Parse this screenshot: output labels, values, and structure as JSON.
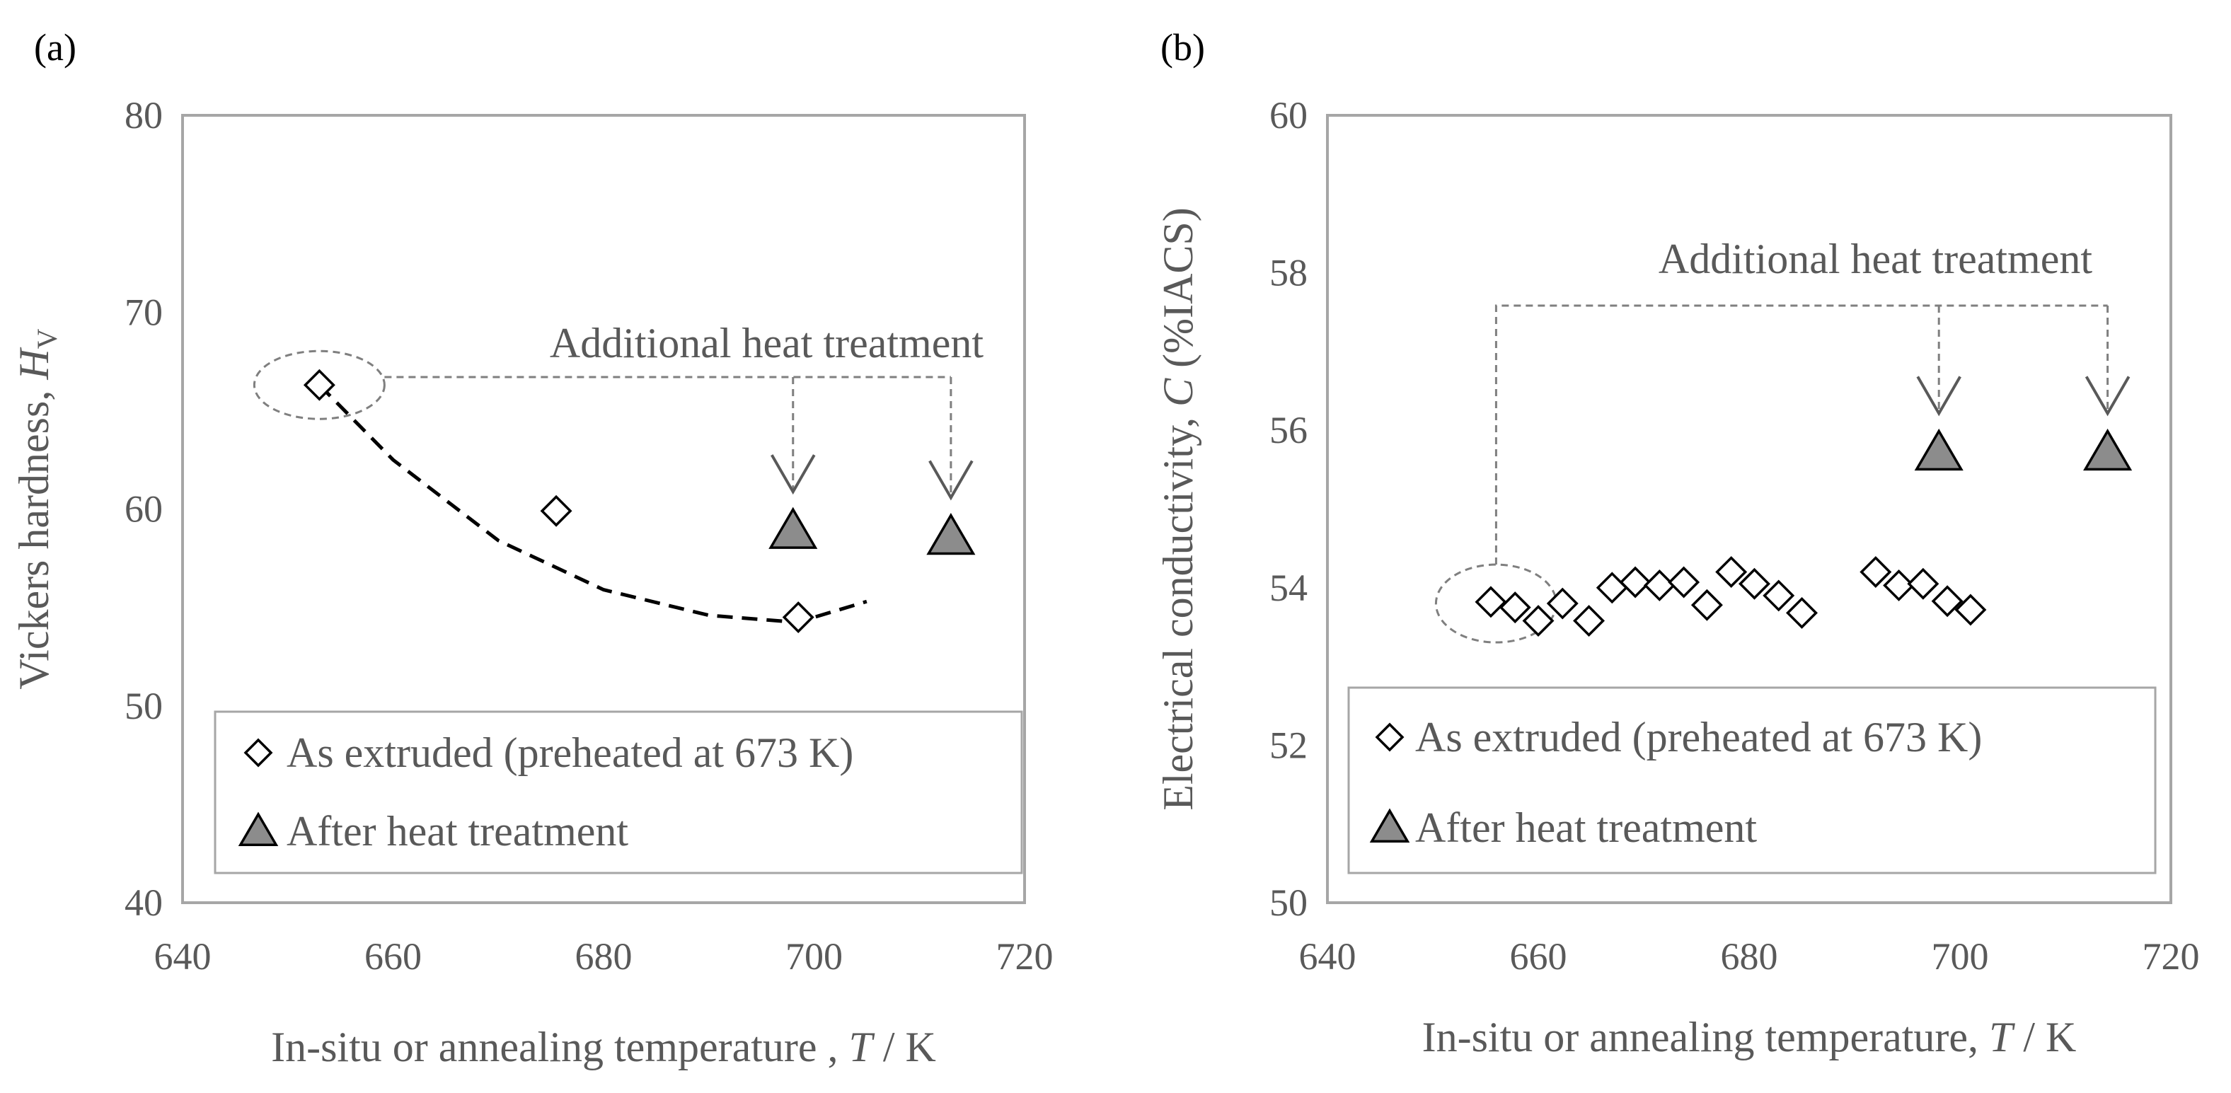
{
  "chart_data": [
    {
      "panel": "(a)",
      "type": "scatter",
      "title": "",
      "xlabel": "In-situ or annealing temperature , T / K",
      "xlabel_main": "In-situ or annealing temperature , ",
      "xlabel_var": "T",
      "xlabel_unit": " / K",
      "ylabel": "Vickers hardness, HV",
      "ylabel_main": "Vickers hardness, ",
      "ylabel_var": "H",
      "ylabel_sub": "V",
      "xlim": [
        640,
        720
      ],
      "ylim": [
        40,
        80
      ],
      "xticks": [
        "640",
        "660",
        "680",
        "700",
        "720"
      ],
      "yticks": [
        "40",
        "50",
        "60",
        "70",
        "80"
      ],
      "grid": false,
      "legend_position": "bottom",
      "series": [
        {
          "name": "As extruded (preheated at 673 K)",
          "marker": "open-diamond",
          "x": [
            653,
            675.5,
            698.5
          ],
          "y": [
            66.3,
            59.9,
            54.5
          ]
        },
        {
          "name": "After heat treatment",
          "marker": "filled-triangle",
          "x": [
            698,
            713
          ],
          "y": [
            58.9,
            58.6
          ]
        }
      ],
      "trend_line": {
        "style": "dashed",
        "x": [
          653,
          660,
          670,
          680,
          690,
          697,
          700,
          705
        ],
        "y": [
          66.3,
          62.5,
          58.4,
          55.9,
          54.6,
          54.3,
          54.5,
          55.3
        ]
      },
      "annotation": "Additional heat treatment",
      "highlight_point": {
        "x": 653,
        "y": 66.3
      },
      "arrow_targets": [
        {
          "x": 698,
          "y": 58.9
        },
        {
          "x": 713,
          "y": 58.6
        }
      ]
    },
    {
      "panel": "(b)",
      "type": "scatter",
      "title": "",
      "xlabel": "In-situ or annealing temperature, T / K",
      "xlabel_main": "In-situ or annealing temperature, ",
      "xlabel_var": "T",
      "xlabel_unit": " / K",
      "ylabel": "Electrical conductivity, C (%IACS)",
      "ylabel_main": "Electrical conductivity, ",
      "ylabel_var": "C",
      "ylabel_unit": " (%IACS)",
      "xlim": [
        640,
        720
      ],
      "ylim": [
        50,
        60
      ],
      "xticks": [
        "640",
        "660",
        "680",
        "700",
        "720"
      ],
      "yticks": [
        "50",
        "52",
        "54",
        "56",
        "58",
        "60"
      ],
      "grid": false,
      "legend_position": "bottom",
      "series": [
        {
          "name": "As extruded (preheated at 673 K)",
          "marker": "open-diamond",
          "x": [
            655.5,
            657.8,
            660,
            662.3,
            664.8,
            667,
            669.2,
            671.5,
            673.8,
            676,
            678.3,
            680.5,
            682.8,
            685,
            692,
            694.2,
            696.5,
            698.8,
            701
          ],
          "y": [
            53.82,
            53.75,
            53.58,
            53.8,
            53.58,
            54.0,
            54.07,
            54.03,
            54.07,
            53.78,
            54.2,
            54.05,
            53.9,
            53.68,
            54.2,
            54.03,
            54.05,
            53.83,
            53.72
          ]
        },
        {
          "name": "After heat treatment",
          "marker": "filled-triangle",
          "x": [
            698,
            714
          ],
          "y": [
            55.72,
            55.72
          ]
        }
      ],
      "annotation": "Additional heat treatment",
      "highlight_point": {
        "x": 656,
        "y": 53.8
      },
      "arrow_targets": [
        {
          "x": 698,
          "y": 55.72
        },
        {
          "x": 714,
          "y": 55.72
        }
      ]
    }
  ]
}
